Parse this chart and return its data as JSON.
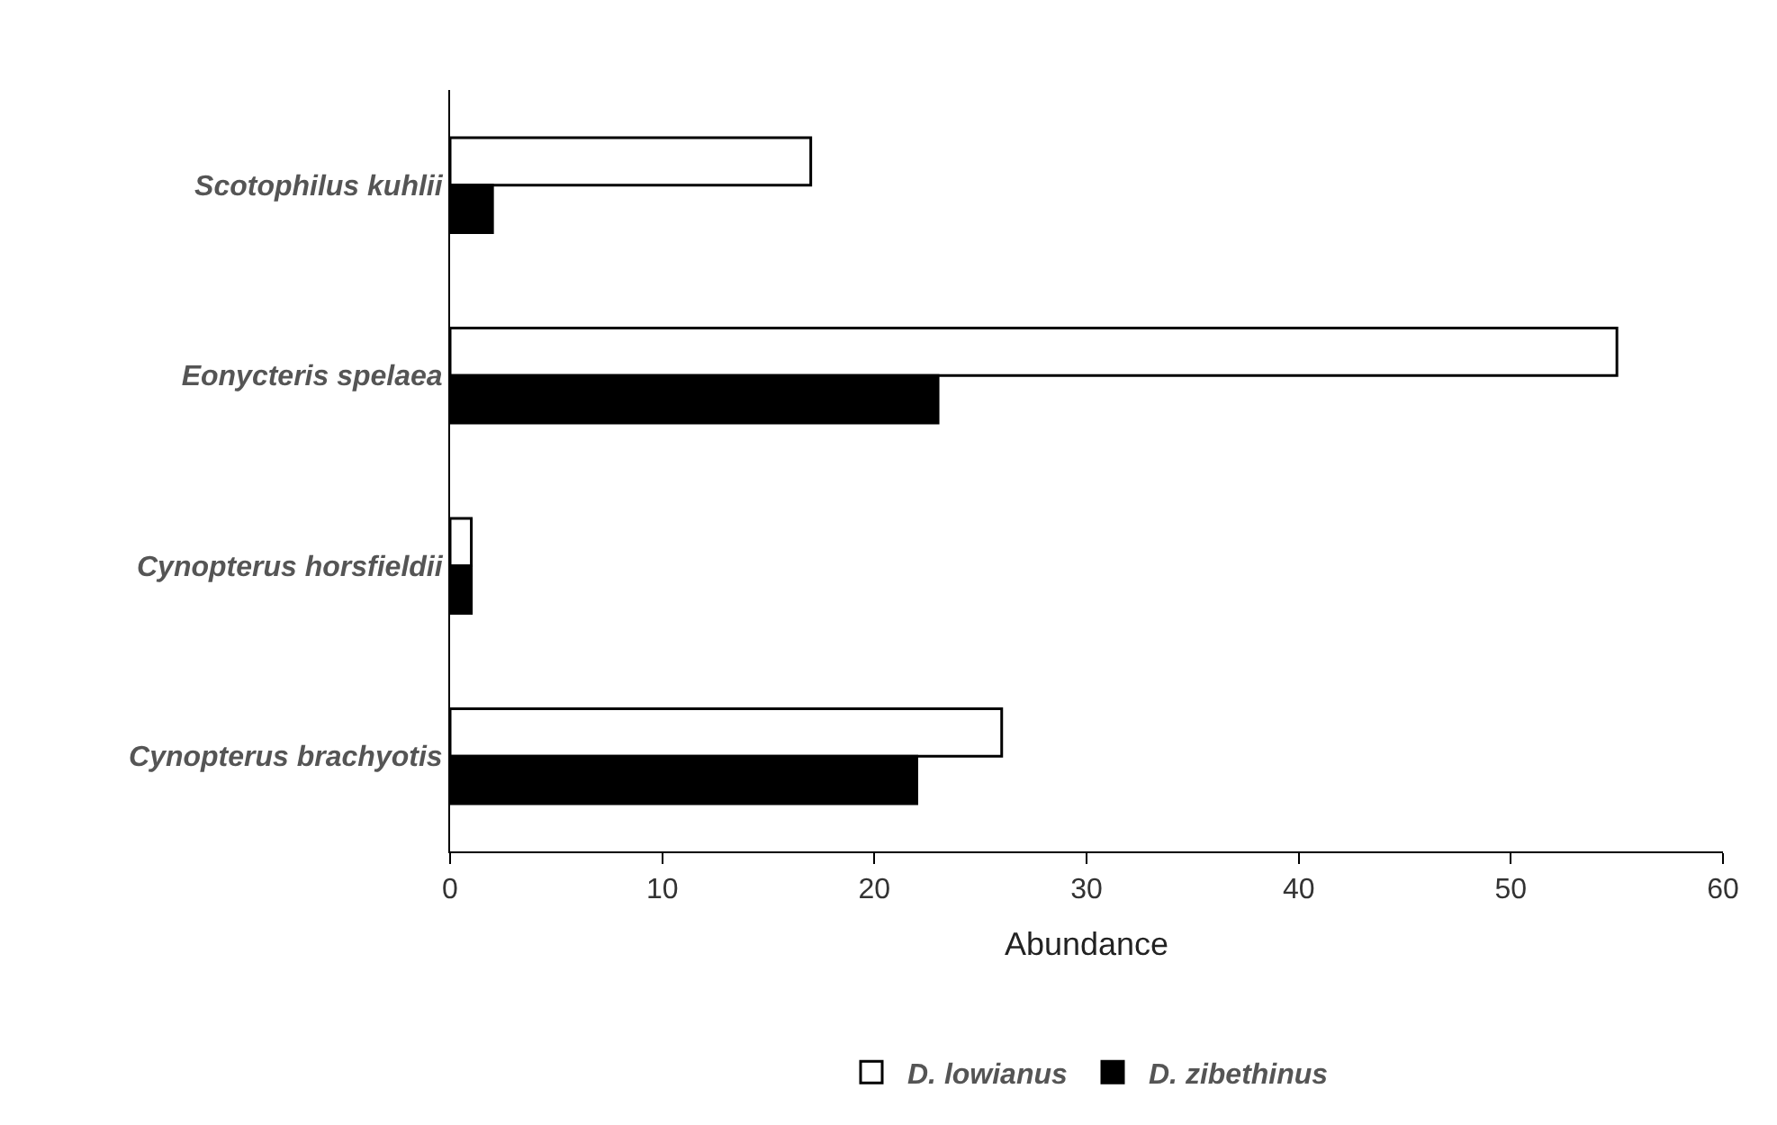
{
  "chart_data": {
    "type": "bar",
    "orientation": "horizontal",
    "xlabel": "Abundance",
    "categories": [
      "Scotophilus kuhlii",
      "Eonycteris spelaea",
      "Cynopterus horsfieldii",
      "Cynopterus brachyotis"
    ],
    "series": [
      {
        "name": "D. lowianus",
        "color": "#ffffff",
        "values": [
          17,
          55,
          1,
          26
        ]
      },
      {
        "name": "D. zibethinus",
        "color": "#000000",
        "values": [
          2,
          23,
          1,
          22
        ]
      }
    ],
    "xlim": [
      0,
      60
    ],
    "xticks": [
      0,
      10,
      20,
      30,
      40,
      50,
      60
    ],
    "legend": "bottom"
  }
}
